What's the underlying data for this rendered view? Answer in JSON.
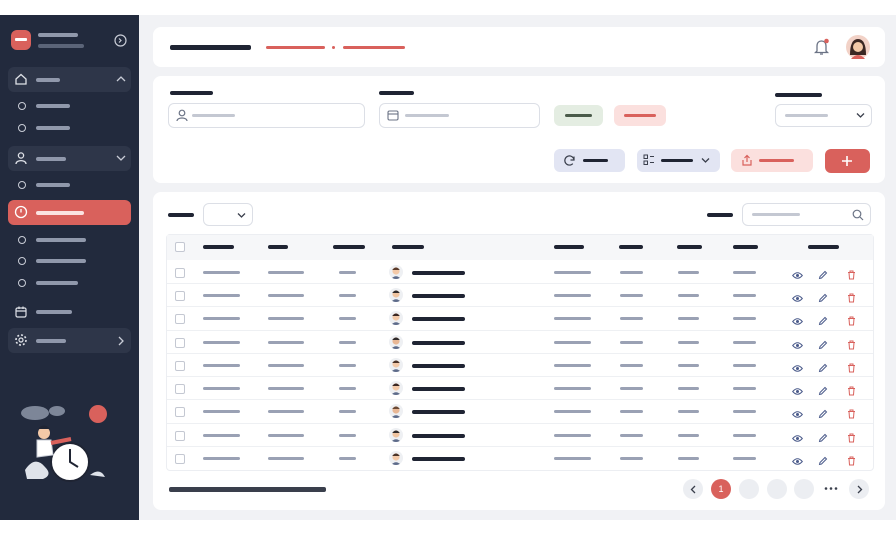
{
  "pagination": {
    "current": "1"
  }
}
